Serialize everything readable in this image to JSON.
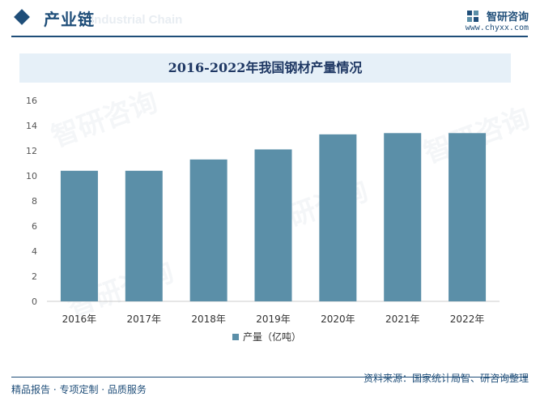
{
  "header": {
    "section_title": "产业链",
    "section_subtitle": "Industrial Chain",
    "brand_name": "智研咨询",
    "brand_url": "www.chyxx.com"
  },
  "chart_data": {
    "type": "bar",
    "title": "2016-2022年我国钢材产量情况",
    "categories": [
      "2016年",
      "2017年",
      "2018年",
      "2019年",
      "2020年",
      "2021年",
      "2022年"
    ],
    "series": [
      {
        "name": "产量（亿吨）",
        "values": [
          10.4,
          10.4,
          11.3,
          12.1,
          13.3,
          13.4,
          13.4
        ]
      }
    ],
    "ylim": [
      0,
      16
    ],
    "yticks": [
      0,
      2,
      4,
      6,
      8,
      10,
      12,
      14,
      16
    ],
    "grid": false,
    "legend": "bottom-center",
    "bar_color": "#5b8fa8"
  },
  "footer": {
    "left": "精品报告 · 专项定制 · 品质服务",
    "source": "资料来源：国家统计局智、研咨询整理"
  },
  "colors": {
    "accent": "#1f4e79",
    "title_band": "#e6f0f8"
  }
}
